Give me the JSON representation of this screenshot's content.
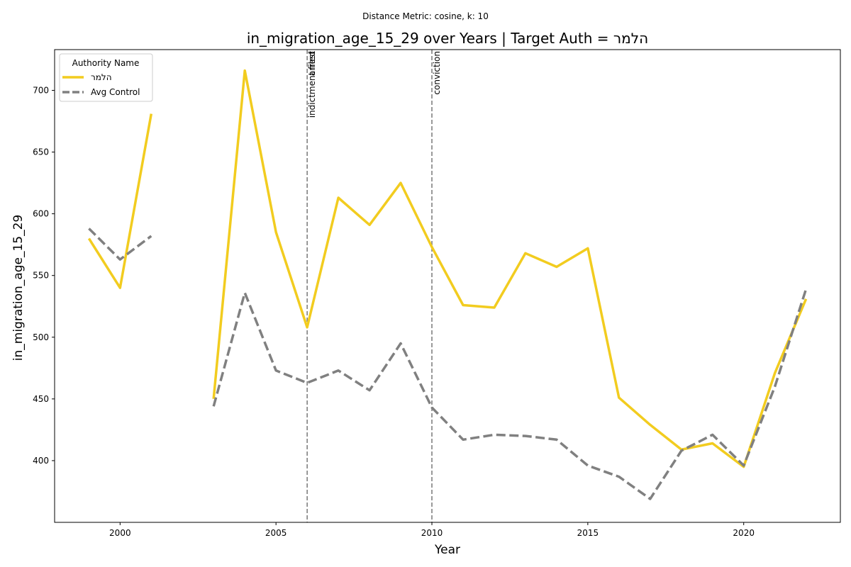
{
  "suptitle": "Distance Metric: cosine, k: 10",
  "chart_data": {
    "type": "line",
    "title": "in_migration_age_15_29 over Years | Target Auth = הלמר",
    "xlabel": "Year",
    "ylabel": "in_migration_age_15_29",
    "xlim": [
      1997.9,
      2023.1
    ],
    "ylim": [
      350,
      733
    ],
    "xticks": [
      2000,
      2005,
      2010,
      2015,
      2020
    ],
    "yticks": [
      400,
      450,
      500,
      550,
      600,
      650,
      700
    ],
    "grid": false,
    "legend": {
      "title": "Authority Name",
      "placement": "top-left"
    },
    "series": [
      {
        "name": "הלמר",
        "color": "#f2cc1f",
        "style": "solid",
        "points": [
          [
            1999,
            580
          ],
          [
            2000,
            540
          ],
          [
            2001,
            681
          ],
          [
            2002,
            null
          ],
          [
            2003,
            450
          ],
          [
            2004,
            716
          ],
          [
            2005,
            585
          ],
          [
            2006,
            508
          ],
          [
            2007,
            613
          ],
          [
            2008,
            591
          ],
          [
            2009,
            625
          ],
          [
            2010,
            573
          ],
          [
            2011,
            526
          ],
          [
            2012,
            524
          ],
          [
            2013,
            568
          ],
          [
            2014,
            557
          ],
          [
            2015,
            572
          ],
          [
            2016,
            451
          ],
          [
            2017,
            429
          ],
          [
            2018,
            409
          ],
          [
            2019,
            414
          ],
          [
            2020,
            395
          ],
          [
            2021,
            471
          ],
          [
            2022,
            531
          ]
        ]
      },
      {
        "name": "Avg Control",
        "color": "#808080",
        "style": "dashed",
        "points": [
          [
            1999,
            588
          ],
          [
            2000,
            563
          ],
          [
            2001,
            582
          ],
          [
            2002,
            null
          ],
          [
            2003,
            444
          ],
          [
            2004,
            536
          ],
          [
            2005,
            473
          ],
          [
            2006,
            463
          ],
          [
            2007,
            473
          ],
          [
            2008,
            457
          ],
          [
            2009,
            495
          ],
          [
            2010,
            443
          ],
          [
            2011,
            417
          ],
          [
            2012,
            421
          ],
          [
            2013,
            420
          ],
          [
            2014,
            417
          ],
          [
            2015,
            396
          ],
          [
            2016,
            387
          ],
          [
            2017,
            369
          ],
          [
            2018,
            408
          ],
          [
            2019,
            421
          ],
          [
            2020,
            396
          ],
          [
            2021,
            460
          ],
          [
            2022,
            539
          ]
        ]
      }
    ],
    "events": [
      {
        "x": 2006,
        "label": "indictment filed"
      },
      {
        "x": 2006,
        "label": "arrest"
      },
      {
        "x": 2010,
        "label": "conviction"
      }
    ]
  }
}
